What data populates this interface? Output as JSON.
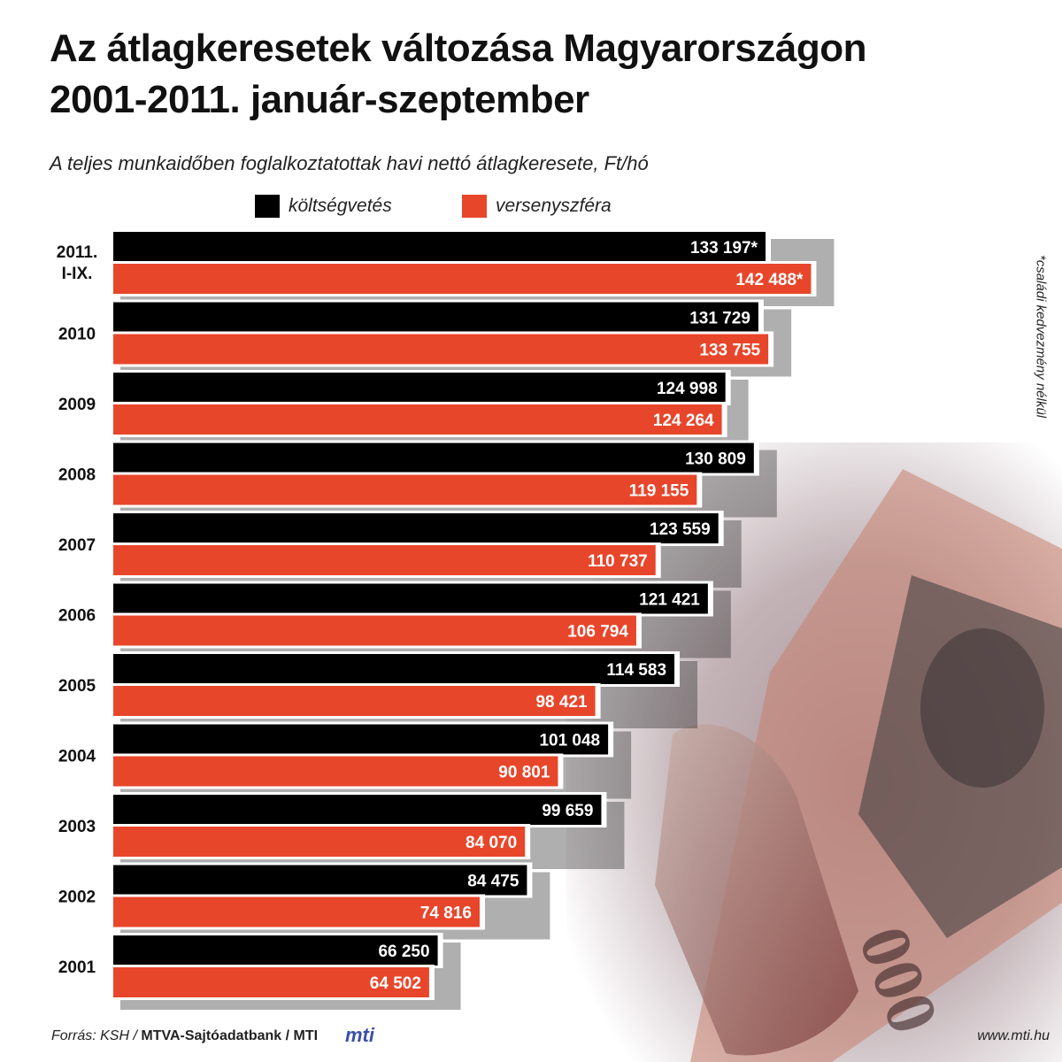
{
  "header": {
    "title_line1": "Az átlagkeresetek változása Magyarországon",
    "title_line2": "2001-2011. január-szeptember",
    "subtitle": "A teljes munkaidőben foglalkoztatottak havi nettó átlagkeresete, Ft/hó"
  },
  "side_note": "*családi kedvezmény nélkül",
  "footer": {
    "source_italic": "Forrás: KSH / ",
    "source_bold": "MTVA-Sajtóadatbank / MTI",
    "logo": "mti",
    "url": "www.mti.hu"
  },
  "chart_data": {
    "type": "bar",
    "orientation": "horizontal",
    "title": "Az átlagkeresetek változása Magyarországon 2001-2011. január-szeptember",
    "subtitle": "A teljes munkaidőben foglalkoztatottak havi nettó átlagkeresete, Ft/hó",
    "legend_position": "top",
    "grid": false,
    "xlim": [
      0,
      150000
    ],
    "categories": [
      [
        "2011.",
        "I-IX."
      ],
      [
        "2010"
      ],
      [
        "2009"
      ],
      [
        "2008"
      ],
      [
        "2007"
      ],
      [
        "2006"
      ],
      [
        "2005"
      ],
      [
        "2004"
      ],
      [
        "2003"
      ],
      [
        "2002"
      ],
      [
        "2001"
      ]
    ],
    "series": [
      {
        "name": "költségvetés",
        "color": "#000000",
        "values": [
          133197,
          131729,
          124998,
          130809,
          123559,
          121421,
          114583,
          101048,
          99659,
          84475,
          66250
        ],
        "labels": [
          "133 197*",
          "131 729",
          "124 998",
          "130 809",
          "123 559",
          "121 421",
          "114 583",
          "101 048",
          "99 659",
          "84 475",
          "66 250"
        ]
      },
      {
        "name": "versenyszféra",
        "color": "#e8462b",
        "values": [
          142488,
          133755,
          124264,
          119155,
          110737,
          106794,
          98421,
          90801,
          84070,
          74816,
          64502
        ],
        "labels": [
          "142 488*",
          "133 755",
          "124 264",
          "119 155",
          "110 737",
          "106 794",
          "98 421",
          "90 801",
          "84 070",
          "74 816",
          "64 502"
        ]
      }
    ]
  }
}
